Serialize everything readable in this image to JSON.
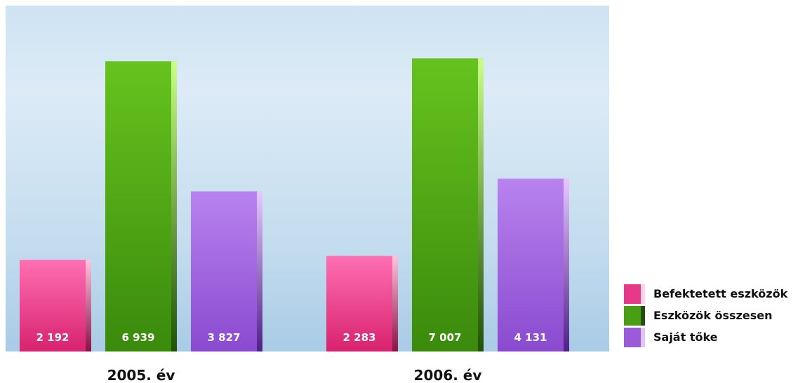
{
  "chart_data": {
    "type": "bar",
    "categories": [
      "2005. év",
      "2006. év"
    ],
    "series": [
      {
        "name": "Befektetett eszközök",
        "values": [
          2192,
          2283
        ],
        "labels": [
          "2 192",
          "2 283"
        ],
        "color": "#e8388a"
      },
      {
        "name": "Eszközök összesen",
        "values": [
          6939,
          7007
        ],
        "labels": [
          "6 939",
          "7 007"
        ],
        "color": "#4a9e14"
      },
      {
        "name": "Saját tőke",
        "values": [
          3827,
          4131
        ],
        "labels": [
          "3 827",
          "4 131"
        ],
        "color": "#9b5ad8"
      }
    ],
    "title": "",
    "xlabel": "",
    "ylabel": "",
    "ylim": [
      0,
      8000
    ],
    "grid": false,
    "legend": "bottom-right"
  }
}
